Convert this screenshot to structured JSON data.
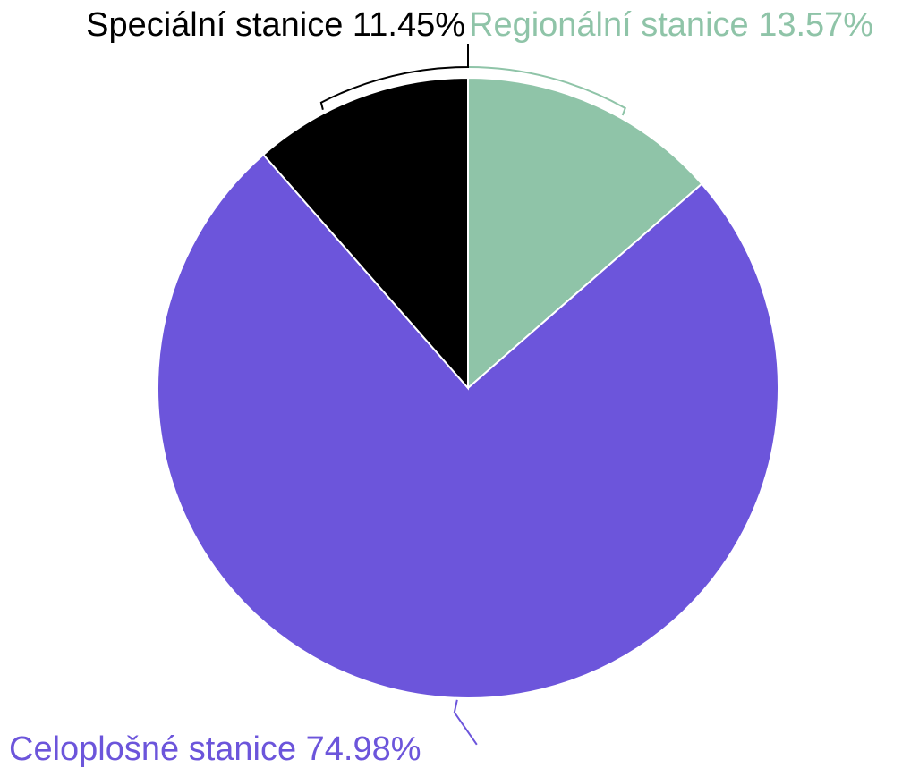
{
  "chart_data": {
    "type": "pie",
    "title": "",
    "slices": [
      {
        "name": "Regionální stanice",
        "value": 13.57,
        "label": "Regionální stanice 13.57%",
        "color": "#8fc4a8"
      },
      {
        "name": "Celoplošné stanice",
        "value": 74.98,
        "label": "Celoplošné stanice 74.98%",
        "color": "#6c55db"
      },
      {
        "name": "Speciální stanice",
        "value": 11.45,
        "label": "Speciální stanice 11.45%",
        "color": "#000000"
      }
    ],
    "legend": "none",
    "label_style": "outside labels with leader lines, colored per slice"
  }
}
